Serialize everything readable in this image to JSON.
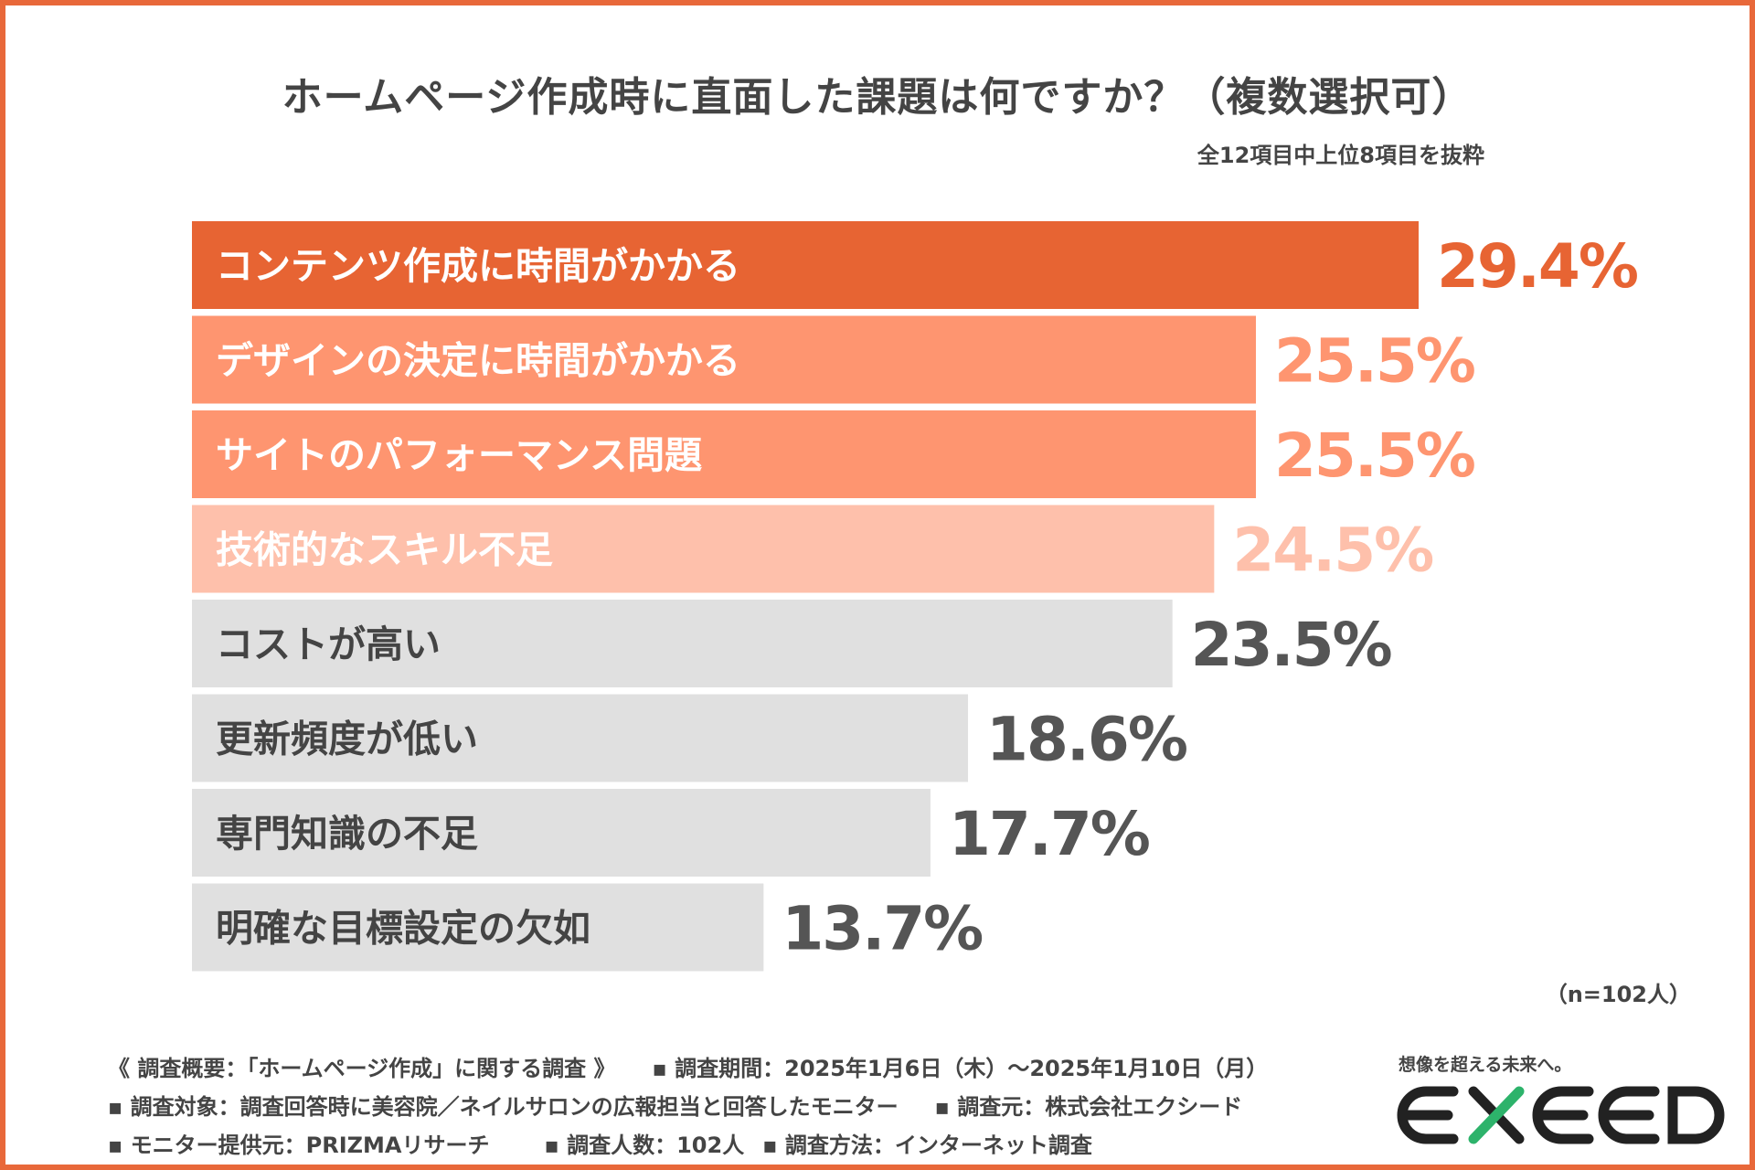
{
  "header": {
    "title": "ホームページ作成時に直面した課題は何ですか？（複数選択可）",
    "subtitle": "全12項目中上位8項目を抜粋"
  },
  "colors": {
    "frame": "#e8683a",
    "text": "#444444",
    "white": "#ffffff",
    "rank1": "#e76433",
    "rank2": "#fe9570",
    "rank4": "#fec0ab",
    "gray_bar": "#e0e0e0",
    "gray_value": "#555555",
    "logo_green": "#2db36b"
  },
  "chart_data": {
    "type": "bar",
    "orientation": "horizontal",
    "title": "ホームページ作成時に直面した課題は何ですか？（複数選択可）",
    "subtitle": "全12項目中上位8項目を抜粋",
    "unit": "%",
    "xlim": [
      0,
      30
    ],
    "categories": [
      "コンテンツ作成に時間がかかる",
      "デザインの決定に時間がかかる",
      "サイトのパフォーマンス問題",
      "技術的なスキル不足",
      "コストが高い",
      "更新頻度が低い",
      "専門知識の不足",
      "明確な目標設定の欠如"
    ],
    "values": [
      29.4,
      25.5,
      25.5,
      24.5,
      23.5,
      18.6,
      17.7,
      13.7
    ],
    "value_labels": [
      "29.4%",
      "25.5%",
      "25.5%",
      "24.5%",
      "23.5%",
      "18.6%",
      "17.7%",
      "13.7%"
    ],
    "bar_colors": [
      "#e76433",
      "#fe9570",
      "#fe9570",
      "#fec0ab",
      "#e0e0e0",
      "#e0e0e0",
      "#e0e0e0",
      "#e0e0e0"
    ],
    "label_colors": [
      "#ffffff",
      "#ffffff",
      "#ffffff",
      "#ffffff",
      "#444444",
      "#444444",
      "#444444",
      "#444444"
    ],
    "value_colors": [
      "#e76433",
      "#fe9570",
      "#fe9570",
      "#fec0ab",
      "#555555",
      "#555555",
      "#555555",
      "#555555"
    ],
    "sample_note": "（n=102人）"
  },
  "footer": {
    "line1": [
      "《 調査概要：「ホームページ作成」に関する調査 》",
      "▪ 調査期間：2025年1月6日（木）〜2025年1月10日（月）"
    ],
    "line2": [
      "▪ 調査対象：調査回答時に美容院／ネイルサロンの広報担当と回答したモニター",
      "▪ 調査元：株式会社エクシード"
    ],
    "line3": [
      "▪ モニター提供元：PRIZMAリサーチ",
      "▪ 調査人数：102人",
      "▪ 調査方法：インターネット調査"
    ]
  },
  "brand": {
    "tagline": "想像を超える未来へ。",
    "logo_text": "EXEED"
  }
}
